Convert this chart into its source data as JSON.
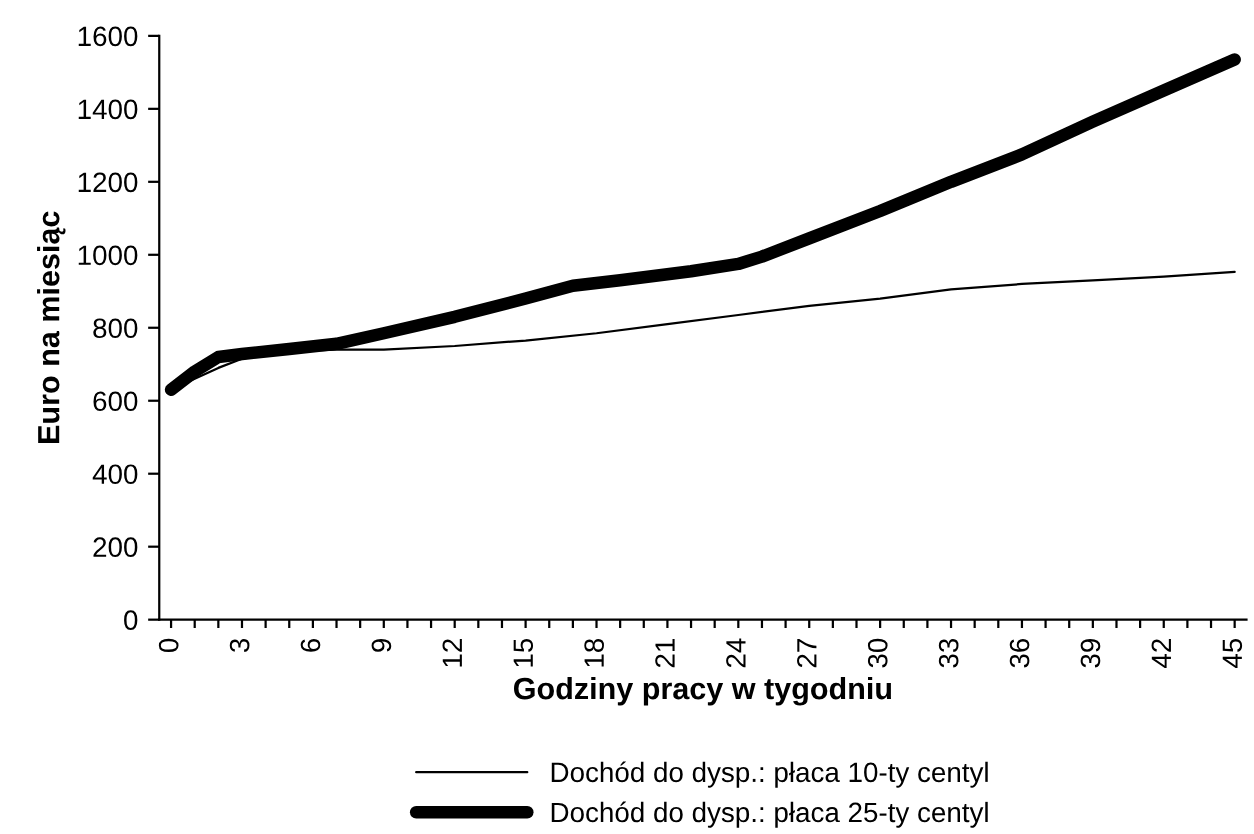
{
  "chart_data": {
    "type": "line",
    "xlabel": "Godziny pracy w tygodniu",
    "ylabel": "Euro na miesiąc",
    "xlim": [
      -0.5,
      45.5
    ],
    "ylim": [
      0,
      1600
    ],
    "xticks": [
      0,
      {
        "value": 1,
        "label": null
      },
      {
        "value": 2,
        "label": null
      },
      3,
      {
        "value": 4,
        "label": null
      },
      {
        "value": 5,
        "label": null
      },
      6,
      {
        "value": 7,
        "label": null
      },
      {
        "value": 8,
        "label": null
      },
      9,
      {
        "value": 10,
        "label": null
      },
      {
        "value": 11,
        "label": null
      },
      12,
      {
        "value": 13,
        "label": null
      },
      {
        "value": 14,
        "label": null
      },
      15,
      {
        "value": 16,
        "label": null
      },
      {
        "value": 17,
        "label": null
      },
      18,
      {
        "value": 19,
        "label": null
      },
      {
        "value": 20,
        "label": null
      },
      21,
      {
        "value": 22,
        "label": null
      },
      {
        "value": 23,
        "label": null
      },
      24,
      {
        "value": 25,
        "label": null
      },
      {
        "value": 26,
        "label": null
      },
      27,
      {
        "value": 28,
        "label": null
      },
      {
        "value": 29,
        "label": null
      },
      30,
      {
        "value": 31,
        "label": null
      },
      {
        "value": 32,
        "label": null
      },
      33,
      {
        "value": 34,
        "label": null
      },
      {
        "value": 35,
        "label": null
      },
      36,
      {
        "value": 37,
        "label": null
      },
      {
        "value": 38,
        "label": null
      },
      39,
      {
        "value": 40,
        "label": null
      },
      {
        "value": 41,
        "label": null
      },
      42,
      {
        "value": 43,
        "label": null
      },
      {
        "value": 44,
        "label": null
      },
      45
    ],
    "yticks": [
      0,
      200,
      400,
      600,
      800,
      1000,
      1200,
      1400,
      1600
    ],
    "grid": false,
    "legend": "bottom",
    "marker": "none",
    "series": [
      {
        "name": "Dochód do dysp.: płaca 10-ty centyl",
        "color": "#000000",
        "line_style": "solid",
        "x": [
          0,
          1,
          2,
          3,
          5,
          7,
          9,
          12,
          15,
          18,
          21,
          24,
          27,
          30,
          33,
          36,
          39,
          42,
          45
        ],
        "values": [
          630,
          660,
          690,
          715,
          735,
          740,
          740,
          750,
          765,
          785,
          810,
          835,
          860,
          880,
          905,
          920,
          930,
          940,
          953
        ]
      },
      {
        "name": "Dochód do dysp.: płaca 25-ty centyl",
        "color": "#000000",
        "line_style": "solid",
        "x": [
          0,
          1,
          2,
          3,
          5,
          7,
          9,
          12,
          15,
          17,
          19,
          22,
          24,
          25,
          27,
          30,
          33,
          36,
          39,
          42,
          45
        ],
        "values": [
          630,
          680,
          720,
          728,
          742,
          756,
          785,
          830,
          880,
          915,
          930,
          955,
          975,
          995,
          1045,
          1120,
          1200,
          1275,
          1365,
          1450,
          1535
        ]
      }
    ]
  }
}
